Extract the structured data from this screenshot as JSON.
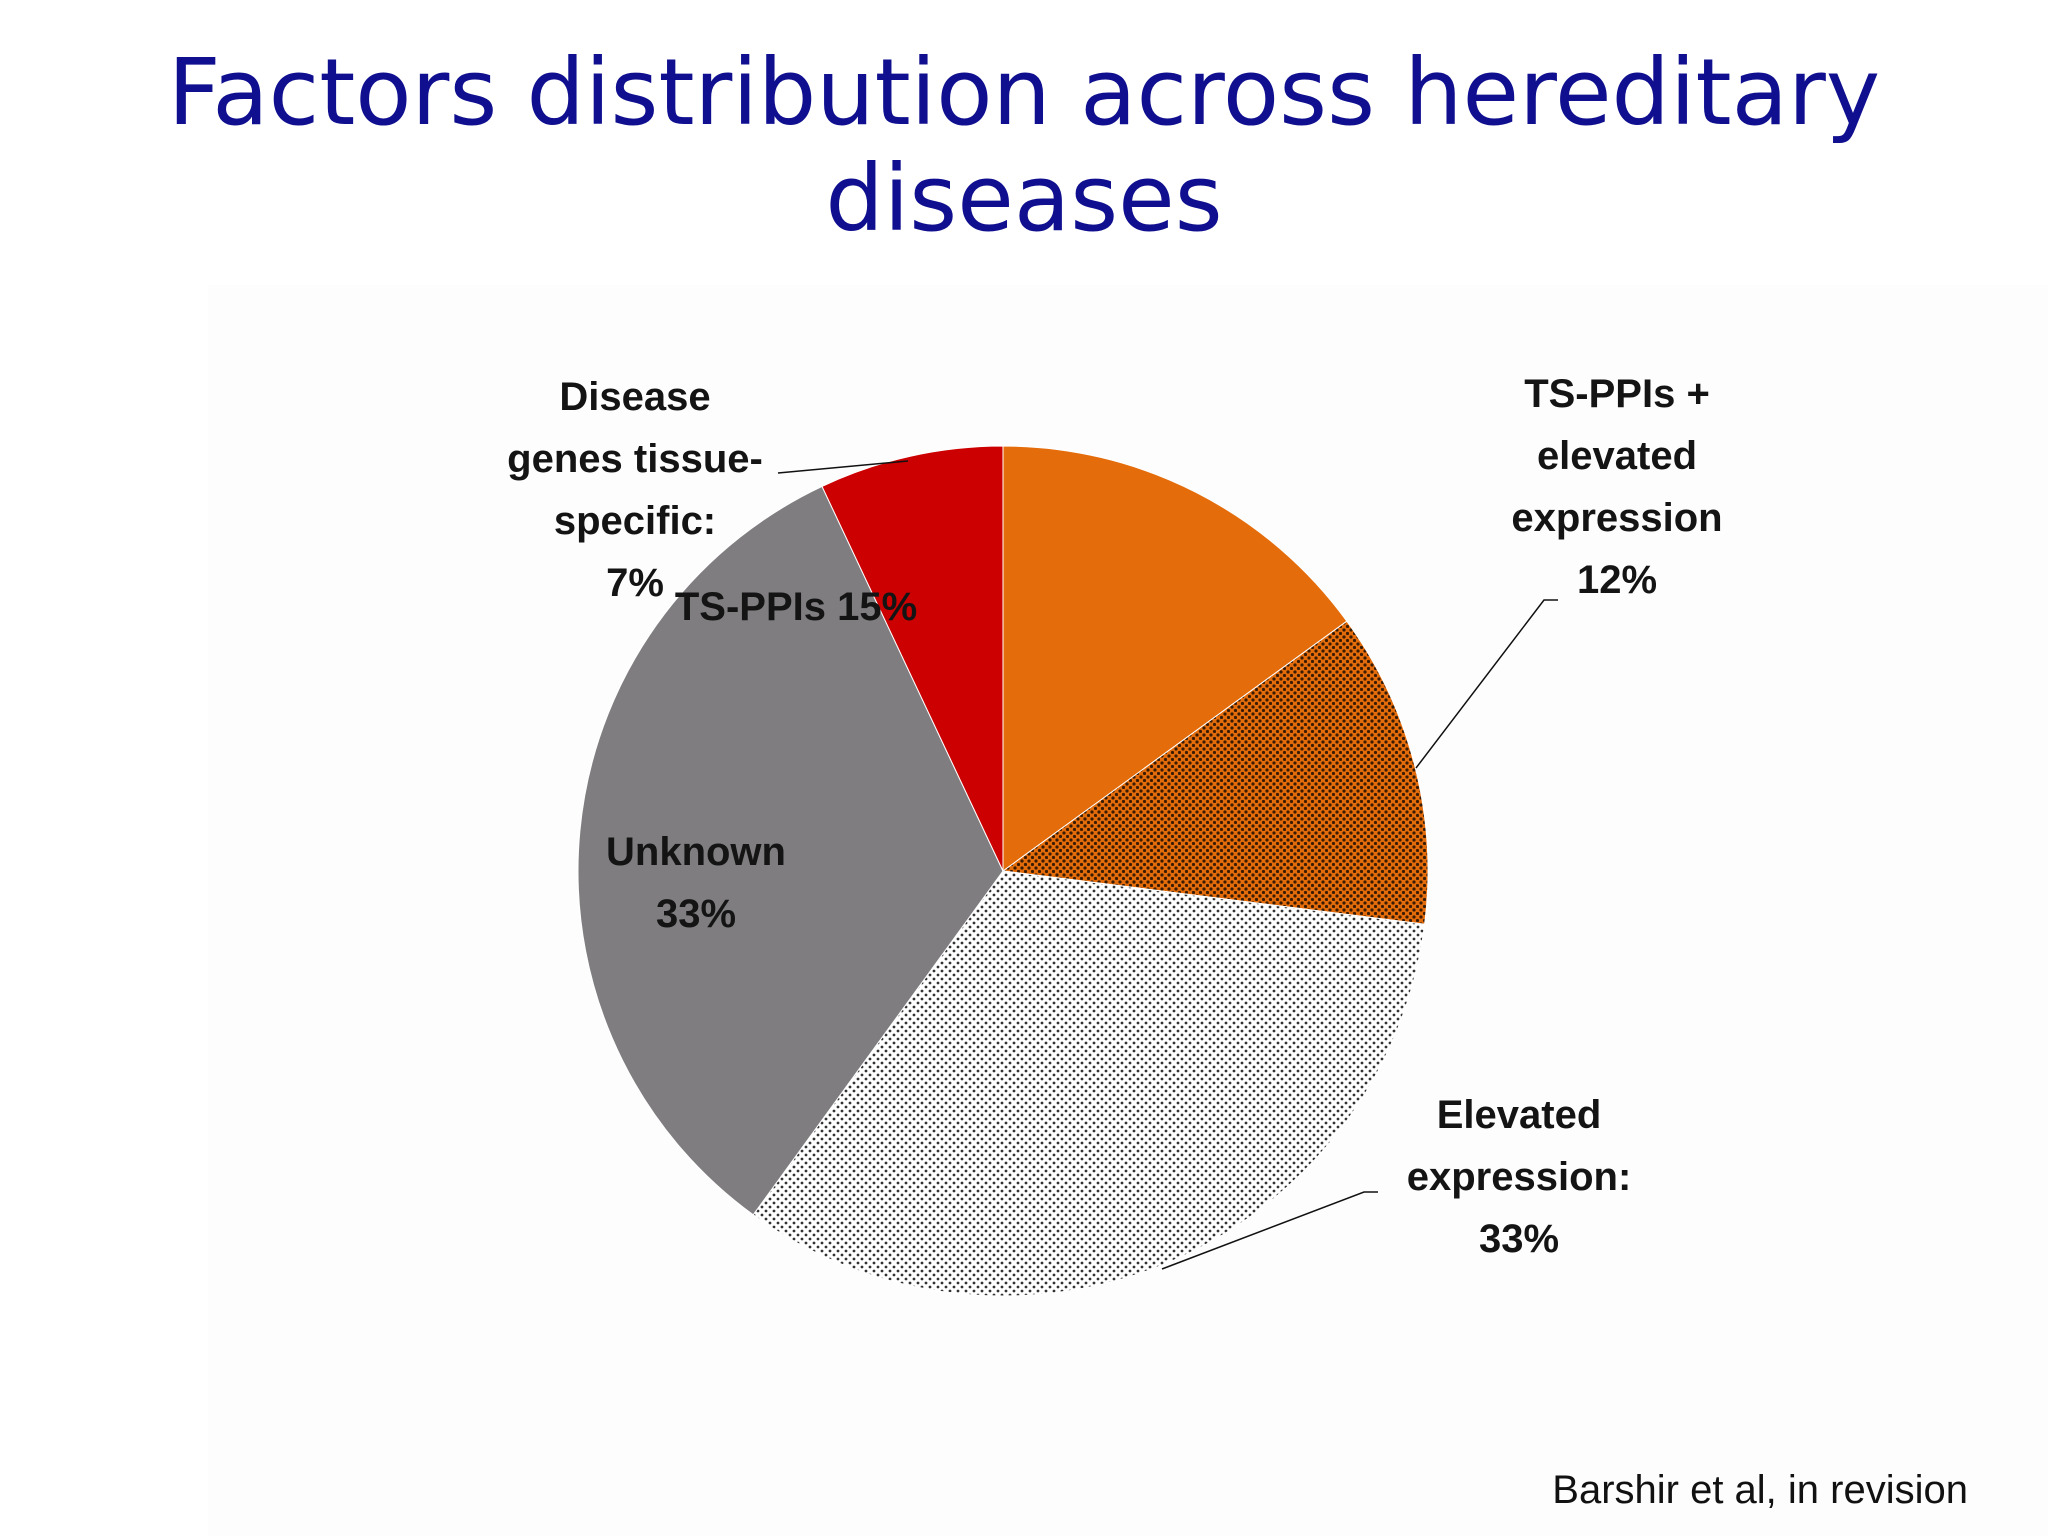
{
  "slide": {
    "title_line1": "Factors distribution across hereditary",
    "title_line2": "diseases",
    "citation": "Barshir et al, in revision"
  },
  "chart_data": {
    "type": "pie",
    "title": "Factors distribution across hereditary diseases",
    "start": "12 o'clock",
    "direction": "clockwise",
    "slices": [
      {
        "label": "TS-PPIs",
        "value": 15,
        "value_text": "15%",
        "color": "#e46c0a",
        "pattern": "solid",
        "label_lines": [
          "TS-PPIs 15%"
        ],
        "label_placement": "inside",
        "leader_line": false
      },
      {
        "label": "TS-PPIs + elevated expression",
        "value": 12,
        "value_text": "12%",
        "color": "#e46c0a",
        "pattern": "dense-dots",
        "label_lines": [
          "TS-PPIs +",
          "elevated",
          "expression",
          "12%"
        ],
        "label_placement": "outside",
        "leader_line": true
      },
      {
        "label": "Elevated expression",
        "value": 33,
        "value_text": "33%",
        "color": "#ffffff",
        "pattern": "sparse-dots",
        "label_lines": [
          "Elevated",
          "expression:",
          "33%"
        ],
        "label_placement": "outside",
        "leader_line": true
      },
      {
        "label": "Unknown",
        "value": 33,
        "value_text": "33%",
        "color": "#7f7d80",
        "pattern": "solid",
        "label_lines": [
          "Unknown",
          "33%"
        ],
        "label_placement": "inside",
        "leader_line": false
      },
      {
        "label": "Disease genes tissue-specific",
        "value": 7,
        "value_text": "7%",
        "color": "#cc0000",
        "pattern": "solid",
        "label_lines": [
          "Disease",
          "genes tissue-",
          "specific:",
          "7%"
        ],
        "label_placement": "outside",
        "leader_line": true
      }
    ]
  }
}
